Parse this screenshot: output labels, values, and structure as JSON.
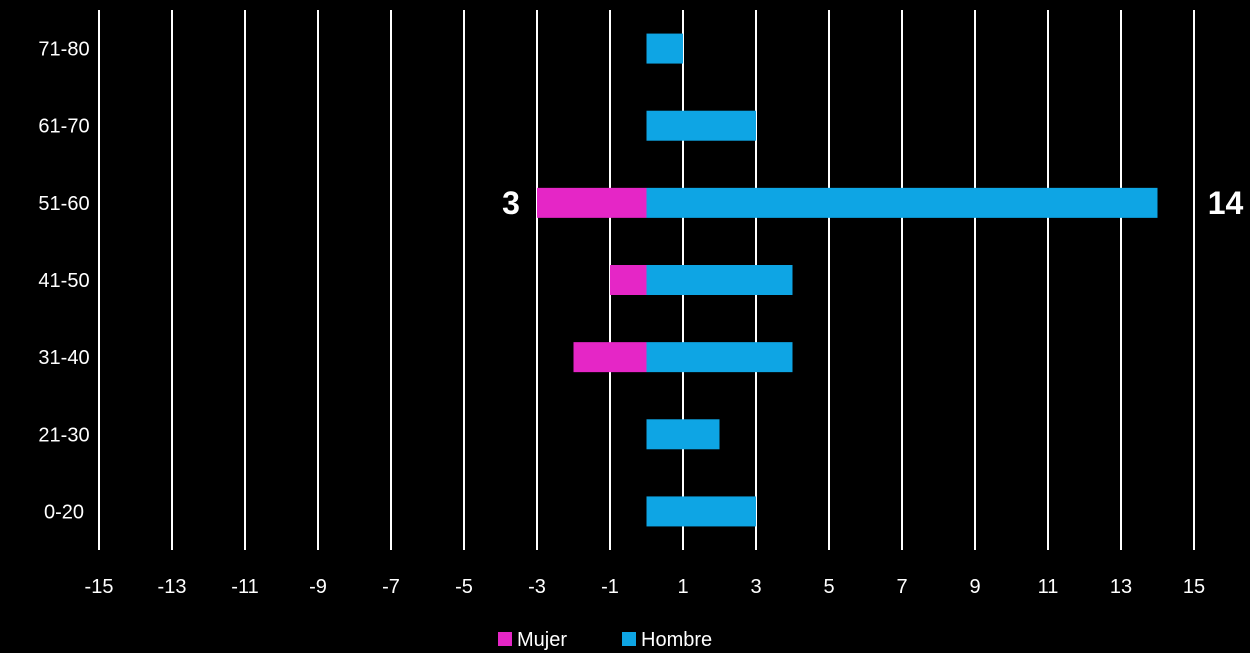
{
  "chart_data": {
    "type": "bar",
    "orientation": "horizontal",
    "stacked": true,
    "categories": [
      "0-20",
      "21-30",
      "31-40",
      "41-50",
      "51-60",
      "61-70",
      "71-80"
    ],
    "series": [
      {
        "name": "Mujer",
        "values": [
          0,
          0,
          -2,
          -1,
          -3,
          0,
          0
        ],
        "color": "#e526c6"
      },
      {
        "name": "Hombre",
        "values": [
          3,
          2,
          4,
          4,
          14,
          3,
          1
        ],
        "color": "#0ea5e4"
      }
    ],
    "xlim": [
      -15,
      15
    ],
    "xticks": [
      -15,
      -13,
      -11,
      -9,
      -7,
      -5,
      -3,
      -1,
      1,
      3,
      5,
      7,
      9,
      11,
      13,
      15
    ],
    "grid": true,
    "grid_color": "#ffffff",
    "background": "#000000",
    "legend_position": "bottom",
    "data_labels": [
      {
        "category": "51-60",
        "series": "Mujer",
        "text": "3"
      },
      {
        "category": "51-60",
        "series": "Hombre",
        "text": "14"
      }
    ]
  }
}
